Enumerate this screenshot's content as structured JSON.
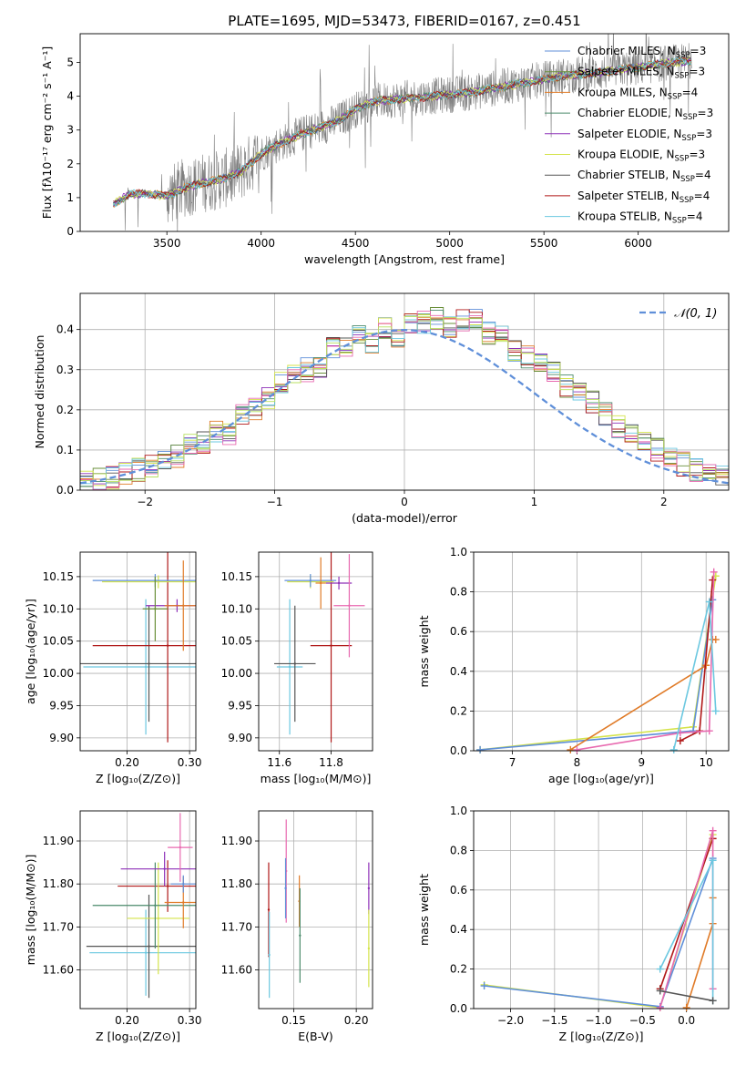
{
  "figure": {
    "title": "PLATE=1695, MJD=53473, FIBERID=0167, z=0.451"
  },
  "palette": {
    "Chabrier MILES": "#5f8fd9",
    "Salpeter MILES": "#6a8f3a",
    "Kroupa MILES": "#e07b28",
    "Chabrier ELODIE": "#4a8a6a",
    "Salpeter ELODIE": "#8e30b8",
    "Kroupa ELODIE": "#d4e34a",
    "Chabrier STELIB": "#555555",
    "Salpeter STELIB": "#b01818",
    "Kroupa STELIB": "#6cc8e0",
    "Extra pink": "#e86ab0",
    "Extra lime": "#b8e060"
  },
  "chart_data": [
    {
      "id": "spectrum",
      "type": "line",
      "title": "PLATE=1695, MJD=53473, FIBERID=0167, z=0.451",
      "xlabel": "wavelength [Angstrom, rest frame]",
      "ylabel": "Flux [fλ10⁻¹⁷ erg cm⁻² s⁻¹ A⁻¹]",
      "xlim": [
        3040,
        6480
      ],
      "ylim": [
        0,
        5.85
      ],
      "xticks": [
        3500,
        4000,
        4500,
        5000,
        5500,
        6000
      ],
      "yticks": [
        0,
        1,
        2,
        3,
        4,
        5
      ],
      "legend_position": "top-right",
      "legend": [
        {
          "name": "Chabrier MILES",
          "ssp": "3"
        },
        {
          "name": "Salpeter MILES",
          "ssp": "3"
        },
        {
          "name": "Kroupa MILES",
          "ssp": "4"
        },
        {
          "name": "Chabrier ELODIE",
          "ssp": "3"
        },
        {
          "name": "Salpeter ELODIE",
          "ssp": "3"
        },
        {
          "name": "Kroupa ELODIE",
          "ssp": "3"
        },
        {
          "name": "Chabrier STELIB",
          "ssp": "4"
        },
        {
          "name": "Salpeter STELIB",
          "ssp": "4"
        },
        {
          "name": "Kroupa STELIB",
          "ssp": "4"
        }
      ],
      "continuum_wavelength": [
        3200,
        3300,
        3400,
        3500,
        3600,
        3700,
        3800,
        3900,
        4000,
        4100,
        4200,
        4300,
        4400,
        4500,
        4600,
        4700,
        4800,
        4900,
        5000,
        5100,
        5200,
        5300,
        5400,
        5500,
        5600,
        5700,
        5800,
        5900,
        6000,
        6100,
        6200,
        6280
      ],
      "continuum_flux": [
        0.75,
        1.1,
        1.12,
        1.05,
        1.3,
        1.45,
        1.55,
        1.8,
        2.3,
        2.6,
        2.85,
        3.05,
        3.25,
        3.6,
        3.85,
        3.9,
        3.95,
        4.0,
        4.05,
        4.1,
        4.2,
        4.3,
        4.4,
        4.5,
        4.6,
        4.65,
        4.7,
        4.8,
        4.85,
        4.95,
        5.0,
        5.05
      ],
      "data_range": [
        3215,
        6285
      ]
    },
    {
      "id": "residuals",
      "type": "histogram",
      "xlabel": "(data-model)/error",
      "ylabel": "Normed distribution",
      "xlim": [
        -2.5,
        2.5
      ],
      "ylim": [
        0,
        0.49
      ],
      "xticks": [
        -2,
        -1,
        0,
        1,
        2
      ],
      "yticks": [
        0.0,
        0.1,
        0.2,
        0.3,
        0.4
      ],
      "grid": true,
      "legend_position": "top-right",
      "reference_curve": {
        "name": "𝒩(0, 1)",
        "mean": 0,
        "sigma": 1
      },
      "bin_centers": [
        -2.45,
        -2.35,
        -2.25,
        -2.15,
        -2.05,
        -1.95,
        -1.85,
        -1.75,
        -1.65,
        -1.55,
        -1.45,
        -1.35,
        -1.25,
        -1.15,
        -1.05,
        -0.95,
        -0.85,
        -0.75,
        -0.65,
        -0.55,
        -0.45,
        -0.35,
        -0.25,
        -0.15,
        -0.05,
        0.05,
        0.15,
        0.25,
        0.35,
        0.45,
        0.55,
        0.65,
        0.75,
        0.85,
        0.95,
        1.05,
        1.15,
        1.25,
        1.35,
        1.45,
        1.55,
        1.65,
        1.75,
        1.85,
        1.95,
        2.05,
        2.15,
        2.25,
        2.35,
        2.45
      ],
      "heights": [
        0.02,
        0.025,
        0.03,
        0.045,
        0.05,
        0.06,
        0.07,
        0.085,
        0.11,
        0.12,
        0.15,
        0.14,
        0.19,
        0.2,
        0.23,
        0.27,
        0.29,
        0.3,
        0.31,
        0.35,
        0.36,
        0.38,
        0.37,
        0.4,
        0.38,
        0.41,
        0.42,
        0.43,
        0.41,
        0.42,
        0.43,
        0.39,
        0.38,
        0.35,
        0.33,
        0.31,
        0.29,
        0.26,
        0.24,
        0.22,
        0.19,
        0.16,
        0.14,
        0.12,
        0.1,
        0.08,
        0.065,
        0.05,
        0.04,
        0.03
      ]
    },
    {
      "id": "age-vs-Z",
      "type": "scatter",
      "xlabel": "Z [log₁₀(Z/Z⊙)]",
      "ylabel": "age  [log₁₀(age/yr)]",
      "xlim": [
        0.125,
        0.31
      ],
      "ylim": [
        9.88,
        10.188
      ],
      "xticks": [
        0.2,
        0.3
      ],
      "yticks": [
        9.9,
        9.95,
        10.0,
        10.05,
        10.1,
        10.15
      ],
      "grid": true,
      "points": [
        {
          "x": 0.23,
          "y": 10.01,
          "xerr": 0.1,
          "yerr": 0.105,
          "series": "Kroupa STELIB"
        },
        {
          "x": 0.235,
          "y": 10.015,
          "xerr": 0.12,
          "yerr": 0.09,
          "series": "Chabrier STELIB"
        },
        {
          "x": 0.265,
          "y": 10.043,
          "xerr": 0.12,
          "yerr": 0.15,
          "series": "Salpeter STELIB"
        },
        {
          "x": 0.25,
          "y": 10.142,
          "xerr": 0.09,
          "yerr": 0.01,
          "series": "Kroupa ELODIE"
        },
        {
          "x": 0.245,
          "y": 10.144,
          "xerr": 0.1,
          "yerr": 0.01,
          "series": "Chabrier MILES"
        },
        {
          "x": 0.28,
          "y": 10.105,
          "xerr": 0.05,
          "yerr": 0.01,
          "series": "Salpeter ELODIE"
        },
        {
          "x": 0.29,
          "y": 10.105,
          "xerr": 0.03,
          "yerr": 0.07,
          "series": "Kroupa MILES"
        },
        {
          "x": 0.245,
          "y": 10.1,
          "xerr": 0.02,
          "yerr": 0.05,
          "series": "Salpeter MILES"
        }
      ]
    },
    {
      "id": "age-vs-mass",
      "type": "scatter",
      "xlabel": "mass [log₁₀(M/M⊙)]",
      "ylabel": "",
      "xlim": [
        11.52,
        11.96
      ],
      "ylim": [
        9.88,
        10.188
      ],
      "xticks": [
        11.6,
        11.8
      ],
      "yticks": [
        9.9,
        9.95,
        10.0,
        10.05,
        10.1,
        10.15
      ],
      "grid": true,
      "points": [
        {
          "x": 11.64,
          "y": 10.01,
          "xerr": 0.05,
          "yerr": 0.105,
          "series": "Kroupa STELIB"
        },
        {
          "x": 11.66,
          "y": 10.015,
          "xerr": 0.08,
          "yerr": 0.09,
          "series": "Chabrier STELIB"
        },
        {
          "x": 11.8,
          "y": 10.043,
          "xerr": 0.08,
          "yerr": 0.15,
          "series": "Salpeter STELIB"
        },
        {
          "x": 11.72,
          "y": 10.142,
          "xerr": 0.09,
          "yerr": 0.01,
          "series": "Kroupa ELODIE"
        },
        {
          "x": 11.72,
          "y": 10.144,
          "xerr": 0.1,
          "yerr": 0.01,
          "series": "Chabrier MILES"
        },
        {
          "x": 11.83,
          "y": 10.14,
          "xerr": 0.05,
          "yerr": 0.01,
          "series": "Salpeter ELODIE"
        },
        {
          "x": 11.76,
          "y": 10.14,
          "xerr": 0.02,
          "yerr": 0.04,
          "series": "Kroupa MILES"
        },
        {
          "x": 11.87,
          "y": 10.105,
          "xerr": 0.06,
          "yerr": 0.08,
          "series": "Extra pink"
        }
      ]
    },
    {
      "id": "massweight-vs-age",
      "type": "line",
      "xlabel": "age  [log₁₀(age/yr)]",
      "ylabel": "mass weight",
      "xlim": [
        6.4,
        10.35
      ],
      "ylim": [
        0,
        1.0
      ],
      "xticks": [
        7,
        8,
        9,
        10
      ],
      "yticks": [
        0.0,
        0.2,
        0.4,
        0.6,
        0.8,
        1.0
      ],
      "grid": true,
      "series": [
        {
          "name": "Kroupa ELODIE",
          "x": [
            6.5,
            9.8,
            10.15
          ],
          "y": [
            0.005,
            0.12,
            0.88
          ]
        },
        {
          "name": "Chabrier MILES",
          "x": [
            6.5,
            9.8,
            10.1
          ],
          "y": [
            0.005,
            0.1,
            0.76
          ]
        },
        {
          "name": "Kroupa MILES",
          "x": [
            7.9,
            10.0,
            10.1,
            10.15
          ],
          "y": [
            0.005,
            0.43,
            0.56,
            0.56
          ]
        },
        {
          "name": "Salpeter STELIB",
          "x": [
            9.6,
            9.9,
            10.1
          ],
          "y": [
            0.05,
            0.1,
            0.86
          ]
        },
        {
          "name": "Extra pink",
          "x": [
            8.0,
            9.6,
            10.05,
            10.12
          ],
          "y": [
            0.005,
            0.09,
            0.1,
            0.9
          ]
        },
        {
          "name": "Kroupa STELIB",
          "x": [
            9.5,
            10.05,
            10.15
          ],
          "y": [
            0.005,
            0.75,
            0.2
          ]
        }
      ]
    },
    {
      "id": "mass-vs-Z",
      "type": "scatter",
      "xlabel": "Z [log₁₀(Z/Z⊙)]",
      "ylabel": "mass [log₁₀(M/M⊙)]",
      "xlim": [
        0.125,
        0.31
      ],
      "ylim": [
        11.51,
        11.97
      ],
      "xticks": [
        0.2,
        0.3
      ],
      "yticks": [
        11.6,
        11.7,
        11.8,
        11.9
      ],
      "grid": true,
      "points": [
        {
          "x": 0.23,
          "y": 11.64,
          "xerr": 0.09,
          "yerr": 0.1,
          "series": "Kroupa STELIB"
        },
        {
          "x": 0.235,
          "y": 11.655,
          "xerr": 0.1,
          "yerr": 0.12,
          "series": "Chabrier STELIB"
        },
        {
          "x": 0.265,
          "y": 11.795,
          "xerr": 0.08,
          "yerr": 0.06,
          "series": "Salpeter STELIB"
        },
        {
          "x": 0.25,
          "y": 11.72,
          "xerr": 0.05,
          "yerr": 0.13,
          "series": "Kroupa ELODIE"
        },
        {
          "x": 0.245,
          "y": 11.75,
          "xerr": 0.1,
          "yerr": 0.1,
          "series": "Chabrier ELODIE"
        },
        {
          "x": 0.26,
          "y": 11.835,
          "xerr": 0.07,
          "yerr": 0.04,
          "series": "Salpeter ELODIE"
        },
        {
          "x": 0.29,
          "y": 11.757,
          "xerr": 0.03,
          "yerr": 0.06,
          "series": "Kroupa MILES"
        },
        {
          "x": 0.29,
          "y": 11.8,
          "xerr": 0.02,
          "yerr": 0.02,
          "series": "Chabrier MILES"
        },
        {
          "x": 0.285,
          "y": 11.885,
          "xerr": 0.02,
          "yerr": 0.08,
          "series": "Extra pink"
        }
      ]
    },
    {
      "id": "mass-vs-EBV",
      "type": "scatter",
      "xlabel": "E(B-V)",
      "ylabel": "",
      "xlim": [
        0.122,
        0.213
      ],
      "ylim": [
        11.51,
        11.97
      ],
      "xticks": [
        0.15,
        0.2
      ],
      "yticks": [
        11.6,
        11.7,
        11.8,
        11.9
      ],
      "grid": true,
      "points": [
        {
          "x": 0.13,
          "y": 11.74,
          "yerr": 0.11,
          "series": "Salpeter STELIB"
        },
        {
          "x": 0.1305,
          "y": 11.635,
          "yerr": 0.1,
          "series": "Kroupa STELIB"
        },
        {
          "x": 0.144,
          "y": 11.83,
          "yerr": 0.12,
          "series": "Extra pink"
        },
        {
          "x": 0.1435,
          "y": 11.79,
          "yerr": 0.07,
          "series": "Chabrier MILES"
        },
        {
          "x": 0.1545,
          "y": 11.76,
          "yerr": 0.06,
          "series": "Kroupa MILES"
        },
        {
          "x": 0.155,
          "y": 11.68,
          "yerr": 0.11,
          "series": "Chabrier ELODIE"
        },
        {
          "x": 0.21,
          "y": 11.79,
          "yerr": 0.06,
          "series": "Salpeter ELODIE"
        },
        {
          "x": 0.21,
          "y": 11.65,
          "yerr": 0.09,
          "series": "Kroupa ELODIE"
        }
      ]
    },
    {
      "id": "massweight-vs-Z",
      "type": "line",
      "xlabel": "Z [log₁₀(Z/Z⊙)]",
      "ylabel": "mass weight",
      "xlim": [
        -2.42,
        0.48
      ],
      "ylim": [
        0,
        1.0
      ],
      "xticks": [
        -2.0,
        -1.5,
        -1.0,
        -0.5,
        0.0
      ],
      "yticks": [
        0.0,
        0.2,
        0.4,
        0.6,
        0.8,
        1.0
      ],
      "grid": true,
      "series": [
        {
          "name": "Kroupa ELODIE",
          "x": [
            -2.3,
            -0.3,
            0.3
          ],
          "y": [
            0.12,
            0.005,
            0.88
          ]
        },
        {
          "name": "Chabrier MILES",
          "x": [
            -2.3,
            -0.3,
            0.3
          ],
          "y": [
            0.115,
            0.01,
            0.76
          ]
        },
        {
          "name": "Kroupa MILES",
          "x": [
            0.0,
            0.3,
            0.3
          ],
          "y": [
            0.005,
            0.43,
            0.56
          ]
        },
        {
          "name": "Salpeter STELIB",
          "x": [
            -0.3,
            0.3
          ],
          "y": [
            0.1,
            0.86
          ]
        },
        {
          "name": "Extra pink",
          "x": [
            -0.3,
            0.3,
            0.3
          ],
          "y": [
            0.005,
            0.9,
            0.1
          ]
        },
        {
          "name": "Kroupa STELIB",
          "x": [
            -0.3,
            0.3,
            0.3
          ],
          "y": [
            0.2,
            0.75,
            0.04
          ]
        },
        {
          "name": "Chabrier STELIB",
          "x": [
            -0.3,
            0.3
          ],
          "y": [
            0.09,
            0.04
          ]
        }
      ]
    }
  ]
}
